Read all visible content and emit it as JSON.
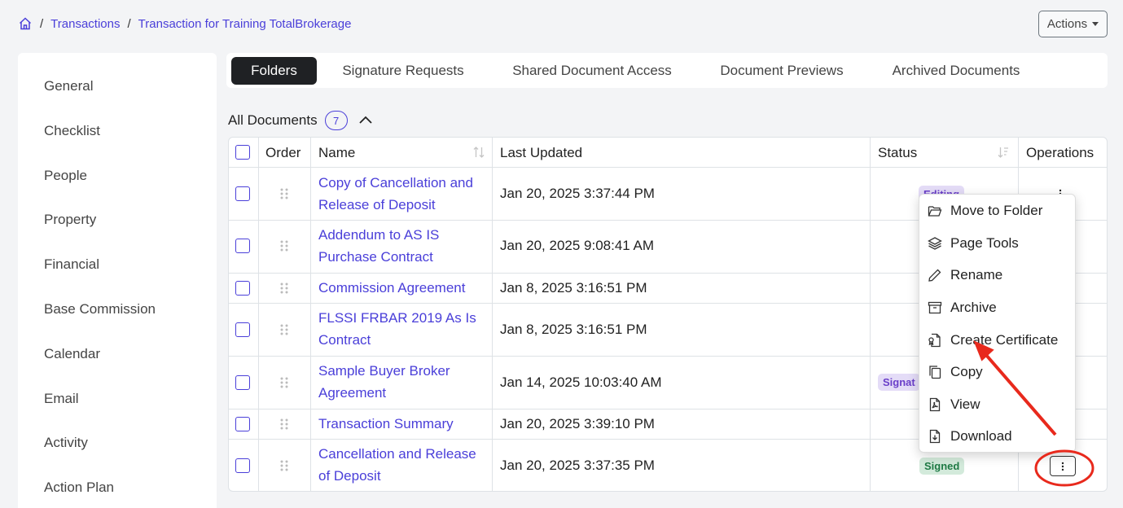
{
  "breadcrumb": {
    "items": [
      "Transactions",
      "Transaction for Training TotalBrokerage"
    ]
  },
  "header": {
    "actions_label": "Actions"
  },
  "sidebar": {
    "items": [
      "General",
      "Checklist",
      "People",
      "Property",
      "Financial",
      "Base Commission",
      "Calendar",
      "Email",
      "Activity",
      "Action Plan"
    ]
  },
  "tabs": [
    "Folders",
    "Signature Requests",
    "Shared Document Access",
    "Document Previews",
    "Archived Documents"
  ],
  "section": {
    "title": "All Documents",
    "count": "7"
  },
  "table": {
    "headers": {
      "order": "Order",
      "name": "Name",
      "last_updated": "Last Updated",
      "status": "Status",
      "operations": "Operations"
    },
    "rows": [
      {
        "name_line1": "Copy of Cancellation and",
        "name_line2": "Release of Deposit",
        "updated": "Jan 20, 2025 3:37:44 PM",
        "status": "Editing"
      },
      {
        "name_line1": "Addendum to AS IS",
        "name_line2": "Purchase Contract",
        "updated": "Jan 20, 2025 9:08:41 AM",
        "status": ""
      },
      {
        "name_line1": "Commission Agreement",
        "name_line2": "",
        "updated": "Jan 8, 2025 3:16:51 PM",
        "status": ""
      },
      {
        "name_line1": "FLSSI FRBAR 2019 As Is",
        "name_line2": "Contract",
        "updated": "Jan 8, 2025 3:16:51 PM",
        "status": ""
      },
      {
        "name_line1": "Sample Buyer Broker",
        "name_line2": "Agreement",
        "updated": "Jan 14, 2025 10:03:40 AM",
        "status": "Signat"
      },
      {
        "name_line1": "Transaction Summary",
        "name_line2": "",
        "updated": "Jan 20, 2025 3:39:10 PM",
        "status": ""
      },
      {
        "name_line1": "Cancellation and Release",
        "name_line2": "of Deposit",
        "updated": "Jan 20, 2025 3:37:35 PM",
        "status": "Signed"
      }
    ]
  },
  "menu": {
    "items": [
      "Move to Folder",
      "Page Tools",
      "Rename",
      "Archive",
      "Create Certificate",
      "Copy",
      "View",
      "Download"
    ],
    "icons": [
      "folder-open-icon",
      "layers-icon",
      "pencil-icon",
      "archive-icon",
      "certificate-icon",
      "copy-icon",
      "pdf-file-icon",
      "download-file-icon"
    ]
  },
  "colors": {
    "accent": "#4a3fd9",
    "annotation": "#e8291c",
    "editing_badge_bg": "#e4dcf7",
    "signed_badge_bg": "#d3eadb"
  }
}
